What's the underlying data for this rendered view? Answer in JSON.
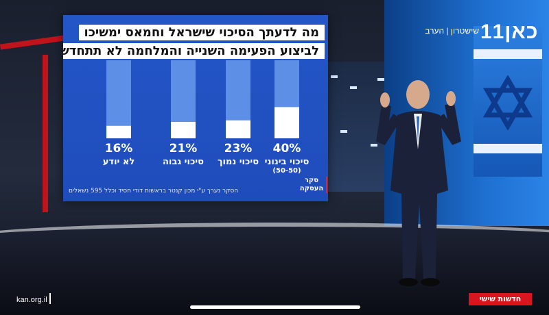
{
  "broadcast": {
    "logo": "כאן11",
    "channel_name": "שישטרון | הערב",
    "program_badge": "חדשות שישי",
    "website": "kan.org.il"
  },
  "poll": {
    "question_line1": "מה לדעתך הסיכוי שישראל וחמאס ימשיכו",
    "question_line2": "לביצוע הפעימה השנייה והמלחמה לא תתחדש?",
    "survey_tag": "סקר העסקה",
    "footnote": "הסקר נערך ע\"י מכון קנטר בראשות דודי חסיד וכלל 595 נשאלים"
  },
  "chart_data": {
    "type": "bar",
    "title": "מה לדעתך הסיכוי שישראל וחמאס ימשיכו לביצוע הפעימה השנייה והמלחמה לא תתחדש?",
    "categories": [
      "סיכוי בינוני (50-50)",
      "סיכוי נמוך",
      "סיכוי גבוה",
      "לא יודע"
    ],
    "category_lines": [
      [
        "סיכוי בינוני",
        "(50-50)"
      ],
      [
        "סיכוי נמוך"
      ],
      [
        "סיכוי גבוה"
      ],
      [
        "לא יודע"
      ]
    ],
    "values": [
      40,
      23,
      21,
      16
    ],
    "value_labels": [
      "40%",
      "23%",
      "21%",
      "16%"
    ],
    "ylim": [
      0,
      100
    ],
    "colors": {
      "track": "#5d8fe6",
      "fill": "#ffffff",
      "text": "#ffffff"
    }
  }
}
